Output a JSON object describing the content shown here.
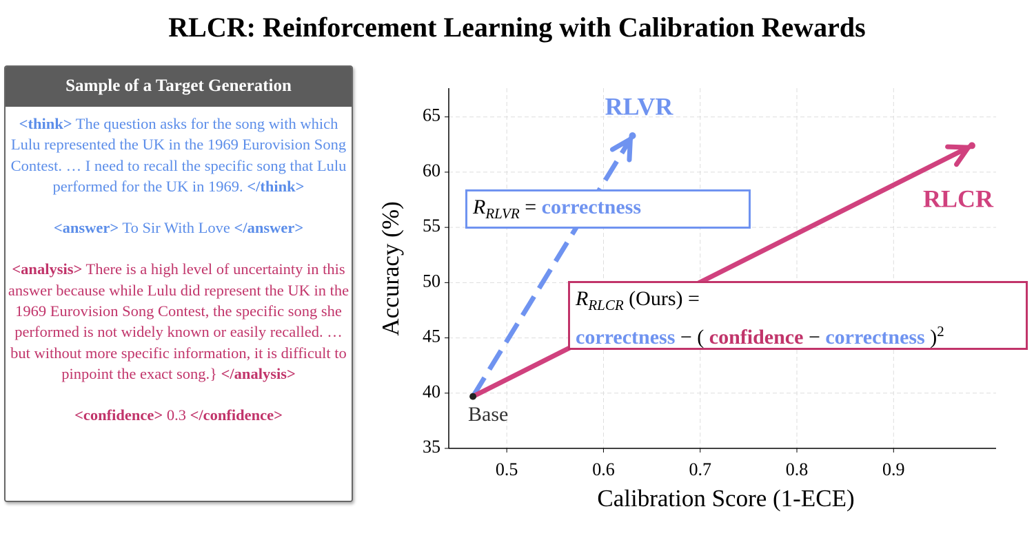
{
  "title": "RLCR: Reinforcement Learning with Calibration Rewards",
  "panel": {
    "header": "Sample of a Target Generation",
    "paragraphs": [
      {
        "color": "#5b8de9",
        "segments": [
          {
            "text": "<think>",
            "bold": true
          },
          {
            "text": " The question asks for the song with which Lulu represented the UK in the 1969 Eurovision Song Contest. … I need to recall the specific song that Lulu performed for the UK in 1969. "
          },
          {
            "text": "</think>",
            "bold": true
          }
        ]
      },
      {
        "color": "#5b8de9",
        "segments": [
          {
            "text": "<answer>",
            "bold": true
          },
          {
            "text": " To Sir With Love "
          },
          {
            "text": "</answer>",
            "bold": true
          }
        ]
      },
      {
        "color": "#c1346a",
        "segments": [
          {
            "text": "<analysis>",
            "bold": true
          },
          {
            "text": " There is a high level of uncertainty in this answer because while Lulu did represent the UK in the 1969 Eurovision Song Contest, the specific song she performed is not widely known or easily recalled. … but without more specific information, it is difficult to pinpoint the exact song.} "
          },
          {
            "text": "</analysis>",
            "bold": true
          }
        ]
      },
      {
        "color": "#c1346a",
        "segments": [
          {
            "text": "<confidence>",
            "bold": true
          },
          {
            "text": " 0.3 "
          },
          {
            "text": "</confidence>",
            "bold": true
          }
        ]
      }
    ]
  },
  "chart_data": {
    "type": "arrow",
    "x_label": "Calibration Score (1-ECE)",
    "y_label": "Accuracy (%)",
    "xlim": [
      0.44,
      1.006
    ],
    "ylim": [
      35,
      67.6
    ],
    "xticks": [
      0.5,
      0.6,
      0.7,
      0.8,
      0.9
    ],
    "yticks": [
      35,
      40,
      45,
      50,
      55,
      60,
      65
    ],
    "grid": true,
    "base_label": "Base",
    "series": [
      {
        "name": "RLVR",
        "color": "#6f93f0",
        "dashed": true,
        "x": [
          0.465,
          0.63
        ],
        "values": [
          39.7,
          63.3
        ]
      },
      {
        "name": "RLCR",
        "color": "#d0417e",
        "dashed": false,
        "x": [
          0.465,
          0.981
        ],
        "values": [
          39.7,
          62.4
        ]
      }
    ],
    "formulas": [
      {
        "color": "#6f93f0",
        "segments": [
          {
            "text": "R",
            "italic": true
          },
          {
            "text": "RLVR",
            "italic": true,
            "pos": "sub"
          },
          {
            "text": " = "
          },
          {
            "text": "correctness",
            "bold": true,
            "color": "#6f93f0"
          }
        ]
      },
      {
        "color": "#c1346a",
        "segments": [
          {
            "text": "R",
            "italic": true
          },
          {
            "text": "RLCR",
            "italic": true,
            "pos": "sub"
          },
          {
            "text": " (Ours) ="
          },
          {
            "text": "",
            "pos": "br"
          },
          {
            "text": "correctness",
            "bold": true,
            "color": "#6f93f0"
          },
          {
            "text": " − ( "
          },
          {
            "text": "confidence",
            "bold": true,
            "color": "#c1346a"
          },
          {
            "text": " − "
          },
          {
            "text": "correctness",
            "bold": true,
            "color": "#6f93f0"
          },
          {
            "text": " )"
          },
          {
            "text": "2",
            "pos": "sup"
          }
        ]
      }
    ]
  }
}
